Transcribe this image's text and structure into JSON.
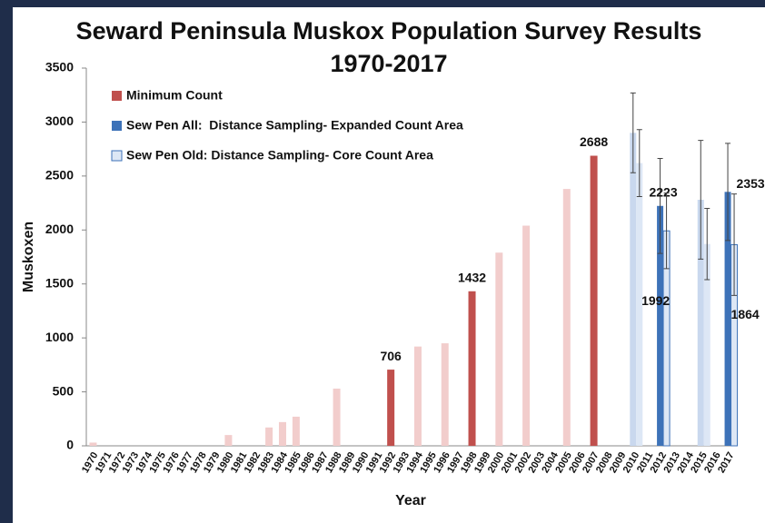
{
  "chart_data": {
    "type": "bar",
    "title": "Seward Peninsula Muskox Population Survey Results",
    "subtitle": "1970-2017",
    "y_label": "Muskoxen",
    "x_label": "Year",
    "categories": [
      "1970",
      "1971",
      "1972",
      "1973",
      "1974",
      "1975",
      "1976",
      "1977",
      "1978",
      "1979",
      "1980",
      "1981",
      "1982",
      "1983",
      "1984",
      "1985",
      "1986",
      "1987",
      "1988",
      "1989",
      "1990",
      "1991",
      "1992",
      "1993",
      "1994",
      "1995",
      "1996",
      "1997",
      "1998",
      "1999",
      "2000",
      "2001",
      "2002",
      "2003",
      "2004",
      "2005",
      "2006",
      "2007",
      "2008",
      "2009",
      "2010",
      "2011",
      "2012",
      "2013",
      "2014",
      "2015",
      "2016",
      "2017"
    ],
    "ylim": [
      0,
      3500
    ],
    "yticks": [
      0,
      500,
      1000,
      1500,
      2000,
      2500,
      3000,
      3500
    ],
    "legend": "top-left",
    "series": [
      {
        "name": "Minimum Count",
        "color": "#c0504d",
        "faded_color": "#f2cdcc",
        "values": [
          30,
          null,
          null,
          null,
          null,
          null,
          null,
          null,
          null,
          null,
          100,
          null,
          null,
          170,
          220,
          270,
          null,
          null,
          530,
          null,
          null,
          null,
          706,
          null,
          920,
          null,
          950,
          null,
          1432,
          null,
          1790,
          null,
          2040,
          null,
          null,
          2380,
          null,
          2688,
          null,
          null,
          null,
          null,
          null,
          null,
          null,
          null,
          null,
          null
        ],
        "highlighted": [
          false,
          null,
          null,
          null,
          null,
          null,
          null,
          null,
          null,
          null,
          false,
          null,
          null,
          false,
          false,
          false,
          null,
          null,
          false,
          null,
          null,
          null,
          true,
          null,
          false,
          null,
          false,
          null,
          true,
          null,
          false,
          null,
          false,
          null,
          null,
          false,
          null,
          true,
          null,
          null,
          null,
          null,
          null,
          null,
          null,
          null,
          null,
          null
        ]
      },
      {
        "name": "Sew Pen All:  Distance Sampling- Expanded Count Area",
        "color": "#3d72b8",
        "faded_color": "#c9d8ee",
        "values": [
          null,
          null,
          null,
          null,
          null,
          null,
          null,
          null,
          null,
          null,
          null,
          null,
          null,
          null,
          null,
          null,
          null,
          null,
          null,
          null,
          null,
          null,
          null,
          null,
          null,
          null,
          null,
          null,
          null,
          null,
          null,
          null,
          null,
          null,
          null,
          null,
          null,
          null,
          null,
          null,
          2900,
          null,
          2223,
          null,
          null,
          2280,
          null,
          2353
        ],
        "errors": [
          null,
          null,
          null,
          null,
          null,
          null,
          null,
          null,
          null,
          null,
          null,
          null,
          null,
          null,
          null,
          null,
          null,
          null,
          null,
          null,
          null,
          null,
          null,
          null,
          null,
          null,
          null,
          null,
          null,
          null,
          null,
          null,
          null,
          null,
          null,
          null,
          null,
          null,
          null,
          null,
          370,
          null,
          440,
          null,
          null,
          550,
          null,
          450
        ],
        "highlighted": [
          null,
          null,
          null,
          null,
          null,
          null,
          null,
          null,
          null,
          null,
          null,
          null,
          null,
          null,
          null,
          null,
          null,
          null,
          null,
          null,
          null,
          null,
          null,
          null,
          null,
          null,
          null,
          null,
          null,
          null,
          null,
          null,
          null,
          null,
          null,
          null,
          null,
          null,
          null,
          null,
          false,
          null,
          true,
          null,
          null,
          false,
          null,
          true
        ]
      },
      {
        "name": "Sew Pen Old: Distance Sampling- Core Count Area",
        "color": "#dde7f5",
        "faded_color": "#dde7f5",
        "values": [
          null,
          null,
          null,
          null,
          null,
          null,
          null,
          null,
          null,
          null,
          null,
          null,
          null,
          null,
          null,
          null,
          null,
          null,
          null,
          null,
          null,
          null,
          null,
          null,
          null,
          null,
          null,
          null,
          null,
          null,
          null,
          null,
          null,
          null,
          null,
          null,
          null,
          null,
          null,
          null,
          2620,
          null,
          1992,
          null,
          null,
          1870,
          null,
          1864
        ],
        "errors": [
          null,
          null,
          null,
          null,
          null,
          null,
          null,
          null,
          null,
          null,
          null,
          null,
          null,
          null,
          null,
          null,
          null,
          null,
          null,
          null,
          null,
          null,
          null,
          null,
          null,
          null,
          null,
          null,
          null,
          null,
          null,
          null,
          null,
          null,
          null,
          null,
          null,
          null,
          null,
          null,
          310,
          null,
          350,
          null,
          null,
          330,
          null,
          470
        ],
        "highlighted": [
          null,
          null,
          null,
          null,
          null,
          null,
          null,
          null,
          null,
          null,
          null,
          null,
          null,
          null,
          null,
          null,
          null,
          null,
          null,
          null,
          null,
          null,
          null,
          null,
          null,
          null,
          null,
          null,
          null,
          null,
          null,
          null,
          null,
          null,
          null,
          null,
          null,
          null,
          null,
          null,
          false,
          null,
          true,
          null,
          null,
          false,
          null,
          true
        ]
      }
    ]
  }
}
